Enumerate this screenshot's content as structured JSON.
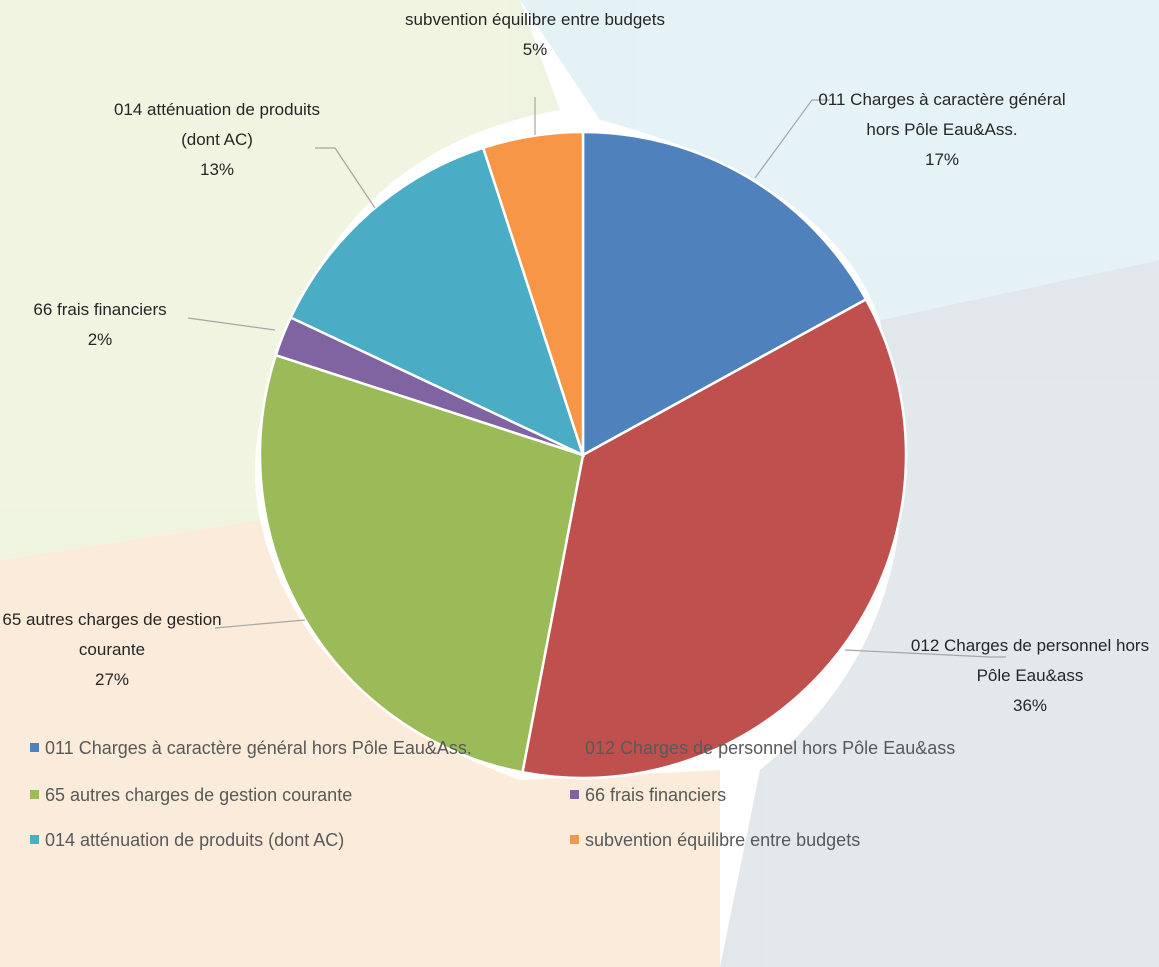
{
  "chart_data": {
    "type": "pie",
    "categories": [
      "011 Charges à caractère général hors Pôle Eau&Ass.",
      "012 Charges de personnel hors Pôle Eau&ass",
      "65 autres charges de gestion courante",
      "66 frais financiers",
      "014 atténuation de produits (dont AC)",
      "subvention équilibre entre budgets"
    ],
    "values": [
      17,
      36,
      27,
      2,
      13,
      5
    ],
    "value_labels": [
      "17%",
      "36%",
      "27%",
      "2%",
      "13%",
      "5%"
    ],
    "colors": [
      "#4f81bd",
      "#c0504d",
      "#9bbb59",
      "#8064a2",
      "#4bacc6",
      "#f79646"
    ],
    "legend": "bottom"
  }
}
